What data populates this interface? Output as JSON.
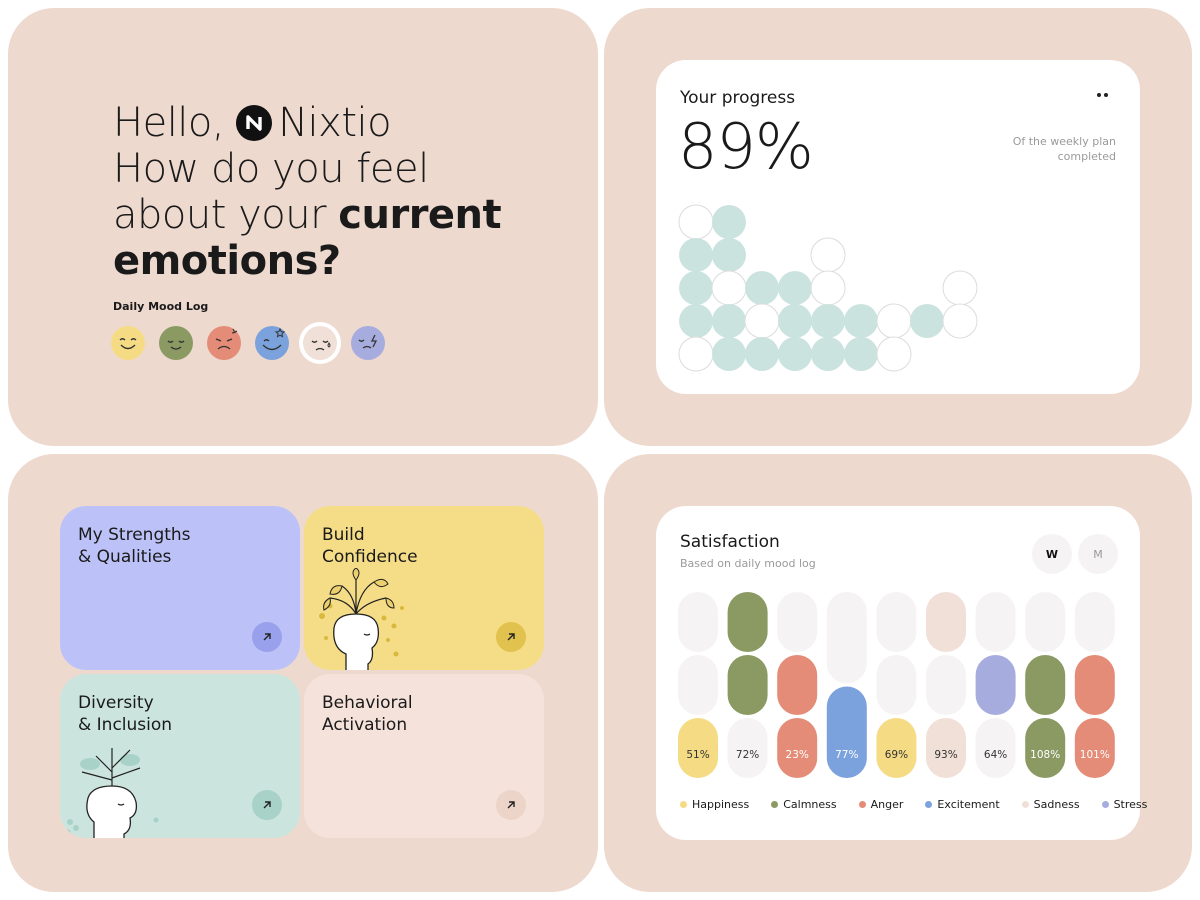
{
  "greeting": {
    "hello": "Hello,",
    "brand": "Nixtio",
    "question_line1": "How do you feel",
    "question_line2_pre": "about your ",
    "question_line2_bold": "current",
    "question_line3_bold": "emotions?"
  },
  "mood_log": {
    "label": "Daily Mood Log",
    "moods": [
      {
        "name": "happy-face-icon",
        "color": "#f5dc84"
      },
      {
        "name": "calm-face-icon",
        "color": "#8a9a62"
      },
      {
        "name": "angry-face-icon",
        "color": "#e48c77"
      },
      {
        "name": "excited-face-icon",
        "color": "#7ba2dc"
      },
      {
        "name": "sad-face-icon",
        "color": "#f1e0d8",
        "selected": true
      },
      {
        "name": "stressed-face-icon",
        "color": "#a7acdf"
      }
    ]
  },
  "progress": {
    "title": "Your progress",
    "value": "89%",
    "note": "Of the weekly plan completed",
    "more_icon": "more-dots-icon",
    "fill_color": "#cbe3df",
    "empty_color": "#ffffff",
    "grid": [
      [
        0,
        1,
        -1,
        -1,
        -1,
        -1,
        -1,
        -1,
        -1
      ],
      [
        1,
        1,
        -1,
        -1,
        0,
        -1,
        -1,
        -1,
        -1
      ],
      [
        1,
        0,
        1,
        1,
        0,
        -1,
        -1,
        -1,
        0
      ],
      [
        1,
        1,
        0,
        1,
        1,
        1,
        0,
        1,
        0
      ],
      [
        0,
        1,
        1,
        1,
        1,
        1,
        0,
        -1,
        -1
      ]
    ]
  },
  "topics": [
    {
      "id": "strengths",
      "title": "My Strengths\n& Qualities",
      "arrow_bg": "#9aa1ec"
    },
    {
      "id": "confidence",
      "title": "Build\nConfidence",
      "arrow_bg": "#e1c24f"
    },
    {
      "id": "diversity",
      "title": "Diversity\n& Inclusion",
      "arrow_bg": "#a8d1c8"
    },
    {
      "id": "behavioral",
      "title": "Behavioral\nActivation",
      "arrow_bg": "#ecd4c9"
    }
  ],
  "satisfaction": {
    "title": "Satisfaction",
    "subtitle": "Based on daily mood log",
    "toggle_week": "W",
    "toggle_month": "M",
    "chart_data": {
      "type": "bar",
      "bars": [
        {
          "label": "51%",
          "color": "#f5dc84",
          "pill_bg": "#f5dc84",
          "text_color": "#333333",
          "segments": [
            "g",
            "g",
            "c"
          ]
        },
        {
          "label": "72%",
          "color": "#8a9a62",
          "pill_bg": "#f6f3f5",
          "text_color": "#333333",
          "segments": [
            "c",
            "c",
            "g"
          ]
        },
        {
          "label": "23%",
          "color": "#e48c77",
          "pill_bg": "#e48c77",
          "text_color": "#ffffff",
          "segments": [
            "g",
            "c",
            "c"
          ]
        },
        {
          "label": "77%",
          "color": "#7ba2dc",
          "pill_bg": "#7ba2dc",
          "text_color": "#ffffff",
          "segments": [
            "g",
            "c"
          ]
        },
        {
          "label": "69%",
          "color": "#f5dc84",
          "pill_bg": "#f5dc84",
          "text_color": "#333333",
          "segments": [
            "g",
            "g",
            "c"
          ]
        },
        {
          "label": "93%",
          "color": "#f1e0d8",
          "pill_bg": "#f1e0d8",
          "text_color": "#333333",
          "segments": [
            "c",
            "g",
            "c"
          ]
        },
        {
          "label": "64%",
          "color": "#a7acdf",
          "pill_bg": "#f6f3f5",
          "text_color": "#333333",
          "segments": [
            "g",
            "c",
            "g"
          ]
        },
        {
          "label": "108%",
          "color": "#8a9a62",
          "pill_bg": "#8a9a62",
          "text_color": "#ffffff",
          "segments": [
            "g",
            "c",
            "c"
          ]
        },
        {
          "label": "101%",
          "color": "#e48c77",
          "pill_bg": "#e48c77",
          "text_color": "#ffffff",
          "segments": [
            "g",
            "c",
            "c"
          ]
        }
      ],
      "legend": [
        {
          "name": "Happiness",
          "color": "#f5dc84"
        },
        {
          "name": "Calmness",
          "color": "#8a9a62"
        },
        {
          "name": "Anger",
          "color": "#e48c77"
        },
        {
          "name": "Excitement",
          "color": "#7ba2dc"
        },
        {
          "name": "Sadness",
          "color": "#f1e0d8"
        },
        {
          "name": "Stress",
          "color": "#a7acdf"
        }
      ]
    }
  }
}
